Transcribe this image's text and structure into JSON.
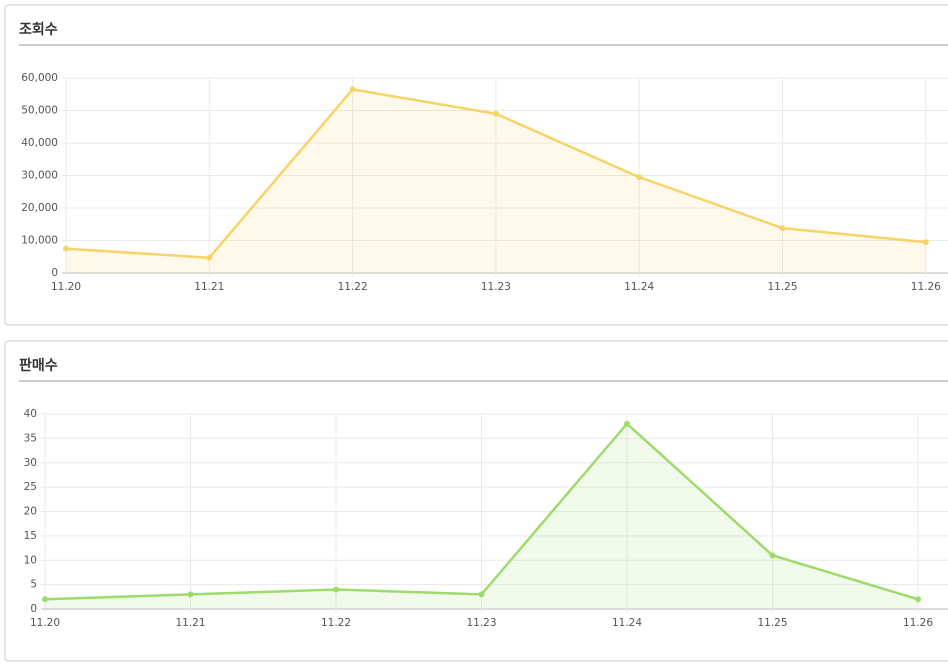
{
  "chart_data": [
    {
      "type": "line",
      "title": "조회수",
      "categories": [
        "11.20",
        "11.21",
        "11.22",
        "11.23",
        "11.24",
        "11.25",
        "11.26"
      ],
      "series": [
        {
          "color": "#f7d468",
          "values": [
            7500,
            4700,
            56500,
            49000,
            29500,
            13800,
            9500
          ]
        }
      ],
      "ylim": [
        0,
        60000
      ],
      "yticks": [
        0,
        {
          "value": 10000,
          "label": "10,000"
        },
        {
          "value": 20000,
          "label": "20,000"
        },
        {
          "value": 30000,
          "label": "30,000"
        },
        {
          "value": 40000,
          "label": "40,000"
        },
        {
          "value": 50000,
          "label": "50,000"
        },
        {
          "value": 60000,
          "label": "60,000"
        }
      ],
      "grid": true
    },
    {
      "type": "line",
      "title": "판매수",
      "categories": [
        "11.20",
        "11.21",
        "11.22",
        "11.23",
        "11.24",
        "11.25",
        "11.26"
      ],
      "series": [
        {
          "color": "#9ddc6c",
          "values": [
            2,
            3,
            4,
            3,
            38,
            11,
            2
          ]
        }
      ],
      "ylim": [
        0,
        40
      ],
      "yticks": [
        0,
        5,
        10,
        15,
        20,
        25,
        30,
        35,
        40
      ],
      "grid": true
    }
  ]
}
